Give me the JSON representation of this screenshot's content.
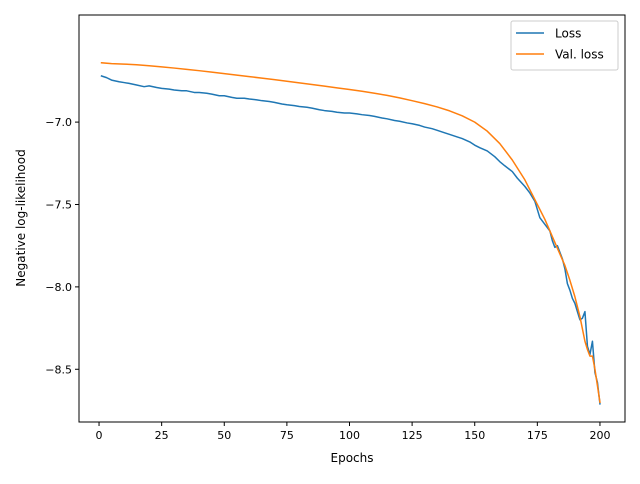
{
  "chart_data": {
    "type": "line",
    "title": "",
    "xlabel": "Epochs",
    "ylabel": "Negative log-likelihood",
    "xlim": [
      -8,
      210
    ],
    "ylim": [
      -8.82,
      -6.35
    ],
    "xticks": [
      0,
      25,
      50,
      75,
      100,
      125,
      150,
      175,
      200
    ],
    "xtick_labels": [
      "0",
      "25",
      "50",
      "75",
      "100",
      "125",
      "150",
      "175",
      "200"
    ],
    "yticks": [
      -7.0,
      -7.5,
      -8.0,
      -8.5
    ],
    "ytick_labels": [
      "−7.0",
      "−7.5",
      "−8.0",
      "−8.5"
    ],
    "grid": false,
    "legend_position": "top-right",
    "series": [
      {
        "name": "Loss",
        "color": "#1f77b4",
        "points": [
          [
            1,
            -6.72
          ],
          [
            3,
            -6.73
          ],
          [
            5,
            -6.745
          ],
          [
            8,
            -6.755
          ],
          [
            10,
            -6.76
          ],
          [
            12,
            -6.765
          ],
          [
            15,
            -6.775
          ],
          [
            18,
            -6.785
          ],
          [
            20,
            -6.78
          ],
          [
            23,
            -6.79
          ],
          [
            25,
            -6.795
          ],
          [
            28,
            -6.8
          ],
          [
            30,
            -6.805
          ],
          [
            33,
            -6.81
          ],
          [
            35,
            -6.81
          ],
          [
            38,
            -6.82
          ],
          [
            40,
            -6.82
          ],
          [
            43,
            -6.825
          ],
          [
            45,
            -6.83
          ],
          [
            48,
            -6.84
          ],
          [
            50,
            -6.84
          ],
          [
            53,
            -6.85
          ],
          [
            55,
            -6.855
          ],
          [
            58,
            -6.855
          ],
          [
            60,
            -6.86
          ],
          [
            63,
            -6.865
          ],
          [
            65,
            -6.87
          ],
          [
            68,
            -6.875
          ],
          [
            70,
            -6.88
          ],
          [
            73,
            -6.89
          ],
          [
            75,
            -6.895
          ],
          [
            78,
            -6.9
          ],
          [
            80,
            -6.905
          ],
          [
            83,
            -6.91
          ],
          [
            85,
            -6.915
          ],
          [
            88,
            -6.925
          ],
          [
            90,
            -6.93
          ],
          [
            93,
            -6.935
          ],
          [
            95,
            -6.94
          ],
          [
            98,
            -6.945
          ],
          [
            100,
            -6.945
          ],
          [
            103,
            -6.95
          ],
          [
            105,
            -6.955
          ],
          [
            108,
            -6.96
          ],
          [
            110,
            -6.965
          ],
          [
            113,
            -6.975
          ],
          [
            115,
            -6.98
          ],
          [
            118,
            -6.99
          ],
          [
            120,
            -6.995
          ],
          [
            123,
            -7.005
          ],
          [
            125,
            -7.01
          ],
          [
            128,
            -7.02
          ],
          [
            130,
            -7.03
          ],
          [
            133,
            -7.04
          ],
          [
            135,
            -7.05
          ],
          [
            138,
            -7.065
          ],
          [
            140,
            -7.075
          ],
          [
            143,
            -7.09
          ],
          [
            145,
            -7.1
          ],
          [
            148,
            -7.12
          ],
          [
            150,
            -7.14
          ],
          [
            152,
            -7.155
          ],
          [
            155,
            -7.175
          ],
          [
            158,
            -7.21
          ],
          [
            160,
            -7.24
          ],
          [
            162,
            -7.265
          ],
          [
            165,
            -7.3
          ],
          [
            167,
            -7.34
          ],
          [
            170,
            -7.39
          ],
          [
            172,
            -7.43
          ],
          [
            174,
            -7.48
          ],
          [
            176,
            -7.58
          ],
          [
            178,
            -7.62
          ],
          [
            180,
            -7.66
          ],
          [
            181,
            -7.72
          ],
          [
            182,
            -7.76
          ],
          [
            183,
            -7.75
          ],
          [
            185,
            -7.83
          ],
          [
            186,
            -7.89
          ],
          [
            187,
            -7.98
          ],
          [
            188,
            -8.02
          ],
          [
            189,
            -8.07
          ],
          [
            190,
            -8.1
          ],
          [
            191,
            -8.15
          ],
          [
            192,
            -8.2
          ],
          [
            193,
            -8.19
          ],
          [
            194,
            -8.15
          ],
          [
            195,
            -8.36
          ],
          [
            196,
            -8.41
          ],
          [
            197,
            -8.33
          ],
          [
            198,
            -8.52
          ],
          [
            199,
            -8.58
          ],
          [
            200,
            -8.71
          ]
        ]
      },
      {
        "name": "Val. loss",
        "color": "#ff7f0e",
        "points": [
          [
            1,
            -6.64
          ],
          [
            5,
            -6.645
          ],
          [
            10,
            -6.648
          ],
          [
            15,
            -6.652
          ],
          [
            20,
            -6.658
          ],
          [
            25,
            -6.665
          ],
          [
            30,
            -6.672
          ],
          [
            35,
            -6.68
          ],
          [
            40,
            -6.688
          ],
          [
            45,
            -6.697
          ],
          [
            50,
            -6.706
          ],
          [
            55,
            -6.715
          ],
          [
            60,
            -6.724
          ],
          [
            65,
            -6.733
          ],
          [
            70,
            -6.742
          ],
          [
            75,
            -6.752
          ],
          [
            80,
            -6.762
          ],
          [
            85,
            -6.772
          ],
          [
            90,
            -6.782
          ],
          [
            95,
            -6.792
          ],
          [
            100,
            -6.802
          ],
          [
            105,
            -6.813
          ],
          [
            110,
            -6.825
          ],
          [
            115,
            -6.838
          ],
          [
            120,
            -6.853
          ],
          [
            125,
            -6.87
          ],
          [
            130,
            -6.888
          ],
          [
            135,
            -6.908
          ],
          [
            140,
            -6.932
          ],
          [
            145,
            -6.962
          ],
          [
            150,
            -7.0
          ],
          [
            155,
            -7.055
          ],
          [
            160,
            -7.13
          ],
          [
            165,
            -7.23
          ],
          [
            170,
            -7.35
          ],
          [
            175,
            -7.5
          ],
          [
            178,
            -7.59
          ],
          [
            180,
            -7.66
          ],
          [
            182,
            -7.73
          ],
          [
            184,
            -7.8
          ],
          [
            186,
            -7.87
          ],
          [
            188,
            -7.96
          ],
          [
            190,
            -8.06
          ],
          [
            192,
            -8.18
          ],
          [
            194,
            -8.33
          ],
          [
            195,
            -8.38
          ],
          [
            196,
            -8.42
          ],
          [
            197,
            -8.42
          ],
          [
            198,
            -8.5
          ],
          [
            199,
            -8.6
          ],
          [
            200,
            -8.7
          ]
        ]
      }
    ]
  }
}
